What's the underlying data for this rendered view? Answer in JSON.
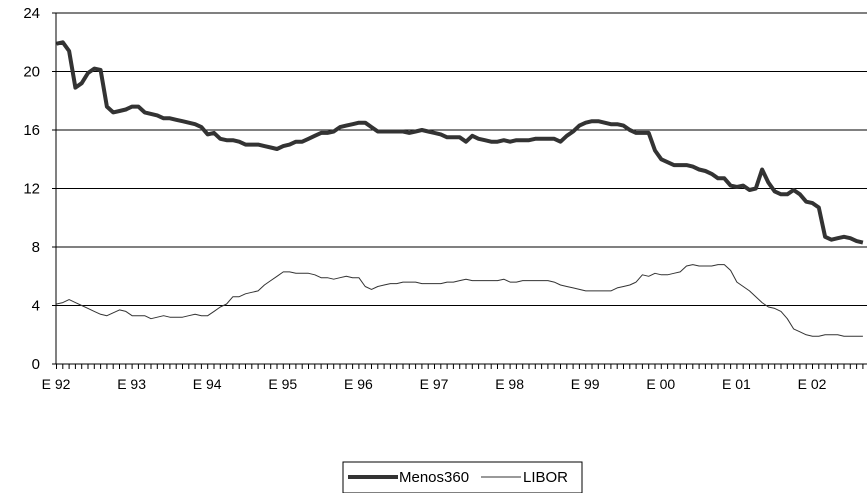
{
  "chart_data": {
    "type": "line",
    "title": "",
    "xlabel": "",
    "ylabel": "",
    "ylim": [
      0,
      24
    ],
    "yticks": [
      0,
      4,
      8,
      12,
      16,
      20,
      24
    ],
    "x_start": "1992-01",
    "x_end": "2002-06",
    "x_tick_labels": [
      "E 92",
      "E 93",
      "E 94",
      "E 95",
      "E 96",
      "E 97",
      "E 98",
      "E 99",
      "E 00",
      "E 01",
      "E 02"
    ],
    "grid": "horizontal",
    "legend_position": "bottom-center",
    "series": [
      {
        "name": "Menos360",
        "color": "#333333",
        "style": "thick",
        "points": [
          [
            "1992-01",
            21.9
          ],
          [
            "1992-02",
            22.0
          ],
          [
            "1992-03",
            21.4
          ],
          [
            "1992-04",
            18.9
          ],
          [
            "1992-05",
            19.2
          ],
          [
            "1992-06",
            19.9
          ],
          [
            "1992-07",
            20.2
          ],
          [
            "1992-08",
            20.1
          ],
          [
            "1992-09",
            17.6
          ],
          [
            "1992-10",
            17.2
          ],
          [
            "1992-11",
            17.3
          ],
          [
            "1992-12",
            17.4
          ],
          [
            "1993-01",
            17.6
          ],
          [
            "1993-02",
            17.6
          ],
          [
            "1993-03",
            17.2
          ],
          [
            "1993-04",
            17.1
          ],
          [
            "1993-05",
            17.0
          ],
          [
            "1993-06",
            16.8
          ],
          [
            "1993-07",
            16.8
          ],
          [
            "1993-08",
            16.7
          ],
          [
            "1993-09",
            16.6
          ],
          [
            "1993-10",
            16.5
          ],
          [
            "1993-11",
            16.4
          ],
          [
            "1993-12",
            16.2
          ],
          [
            "1994-01",
            15.7
          ],
          [
            "1994-02",
            15.8
          ],
          [
            "1994-03",
            15.4
          ],
          [
            "1994-04",
            15.3
          ],
          [
            "1994-05",
            15.3
          ],
          [
            "1994-06",
            15.2
          ],
          [
            "1994-07",
            15.0
          ],
          [
            "1994-08",
            15.0
          ],
          [
            "1994-09",
            15.0
          ],
          [
            "1994-10",
            14.9
          ],
          [
            "1994-11",
            14.8
          ],
          [
            "1994-12",
            14.7
          ],
          [
            "1995-01",
            14.9
          ],
          [
            "1995-02",
            15.0
          ],
          [
            "1995-03",
            15.2
          ],
          [
            "1995-04",
            15.2
          ],
          [
            "1995-05",
            15.4
          ],
          [
            "1995-06",
            15.6
          ],
          [
            "1995-07",
            15.8
          ],
          [
            "1995-08",
            15.8
          ],
          [
            "1995-09",
            15.9
          ],
          [
            "1995-10",
            16.2
          ],
          [
            "1995-11",
            16.3
          ],
          [
            "1995-12",
            16.4
          ],
          [
            "1996-01",
            16.5
          ],
          [
            "1996-02",
            16.5
          ],
          [
            "1996-03",
            16.2
          ],
          [
            "1996-04",
            15.9
          ],
          [
            "1996-05",
            15.9
          ],
          [
            "1996-06",
            15.9
          ],
          [
            "1996-07",
            15.9
          ],
          [
            "1996-08",
            15.9
          ],
          [
            "1996-09",
            15.8
          ],
          [
            "1996-10",
            15.9
          ],
          [
            "1996-11",
            16.0
          ],
          [
            "1996-12",
            15.9
          ],
          [
            "1997-01",
            15.8
          ],
          [
            "1997-02",
            15.7
          ],
          [
            "1997-03",
            15.5
          ],
          [
            "1997-04",
            15.5
          ],
          [
            "1997-05",
            15.5
          ],
          [
            "1997-06",
            15.2
          ],
          [
            "1997-07",
            15.6
          ],
          [
            "1997-08",
            15.4
          ],
          [
            "1997-09",
            15.3
          ],
          [
            "1997-10",
            15.2
          ],
          [
            "1997-11",
            15.2
          ],
          [
            "1997-12",
            15.3
          ],
          [
            "1998-01",
            15.2
          ],
          [
            "1998-02",
            15.3
          ],
          [
            "1998-03",
            15.3
          ],
          [
            "1998-04",
            15.3
          ],
          [
            "1998-05",
            15.4
          ],
          [
            "1998-06",
            15.4
          ],
          [
            "1998-07",
            15.4
          ],
          [
            "1998-08",
            15.4
          ],
          [
            "1998-09",
            15.2
          ],
          [
            "1998-10",
            15.6
          ],
          [
            "1998-11",
            15.9
          ],
          [
            "1998-12",
            16.3
          ],
          [
            "1999-01",
            16.5
          ],
          [
            "1999-02",
            16.6
          ],
          [
            "1999-03",
            16.6
          ],
          [
            "1999-04",
            16.5
          ],
          [
            "1999-05",
            16.4
          ],
          [
            "1999-06",
            16.4
          ],
          [
            "1999-07",
            16.3
          ],
          [
            "1999-08",
            16.0
          ],
          [
            "1999-09",
            15.8
          ],
          [
            "1999-10",
            15.8
          ],
          [
            "1999-11",
            15.8
          ],
          [
            "1999-12",
            14.6
          ],
          [
            "2000-01",
            14.0
          ],
          [
            "2000-02",
            13.8
          ],
          [
            "2000-03",
            13.6
          ],
          [
            "2000-04",
            13.6
          ],
          [
            "2000-05",
            13.6
          ],
          [
            "2000-06",
            13.5
          ],
          [
            "2000-07",
            13.3
          ],
          [
            "2000-08",
            13.2
          ],
          [
            "2000-09",
            13.0
          ],
          [
            "2000-10",
            12.7
          ],
          [
            "2000-11",
            12.7
          ],
          [
            "2000-12",
            12.2
          ],
          [
            "2001-01",
            12.1
          ],
          [
            "2001-02",
            12.2
          ],
          [
            "2001-03",
            11.9
          ],
          [
            "2001-04",
            12.0
          ],
          [
            "2001-05",
            13.3
          ],
          [
            "2001-06",
            12.4
          ],
          [
            "2001-07",
            11.8
          ],
          [
            "2001-08",
            11.6
          ],
          [
            "2001-09",
            11.6
          ],
          [
            "2001-10",
            11.9
          ],
          [
            "2001-11",
            11.6
          ],
          [
            "2001-12",
            11.1
          ],
          [
            "2002-01",
            11.0
          ],
          [
            "2002-02",
            10.7
          ],
          [
            "2002-03",
            8.7
          ],
          [
            "2002-04",
            8.5
          ],
          [
            "2002-05",
            8.6
          ],
          [
            "2002-06",
            8.7
          ],
          [
            "2002-07",
            8.6
          ],
          [
            "2002-08",
            8.4
          ],
          [
            "2002-09",
            8.3
          ]
        ]
      },
      {
        "name": "LIBOR",
        "color": "#333333",
        "style": "thin",
        "points": [
          [
            "1992-01",
            4.1
          ],
          [
            "1992-02",
            4.2
          ],
          [
            "1992-03",
            4.4
          ],
          [
            "1992-04",
            4.2
          ],
          [
            "1992-05",
            4.0
          ],
          [
            "1992-06",
            3.8
          ],
          [
            "1992-07",
            3.6
          ],
          [
            "1992-08",
            3.4
          ],
          [
            "1992-09",
            3.3
          ],
          [
            "1992-10",
            3.5
          ],
          [
            "1992-11",
            3.7
          ],
          [
            "1992-12",
            3.6
          ],
          [
            "1993-01",
            3.3
          ],
          [
            "1993-02",
            3.3
          ],
          [
            "1993-03",
            3.3
          ],
          [
            "1993-04",
            3.1
          ],
          [
            "1993-05",
            3.2
          ],
          [
            "1993-06",
            3.3
          ],
          [
            "1993-07",
            3.2
          ],
          [
            "1993-08",
            3.2
          ],
          [
            "1993-09",
            3.2
          ],
          [
            "1993-10",
            3.3
          ],
          [
            "1993-11",
            3.4
          ],
          [
            "1993-12",
            3.3
          ],
          [
            "1994-01",
            3.3
          ],
          [
            "1994-02",
            3.6
          ],
          [
            "1994-03",
            3.9
          ],
          [
            "1994-04",
            4.1
          ],
          [
            "1994-05",
            4.6
          ],
          [
            "1994-06",
            4.6
          ],
          [
            "1994-07",
            4.8
          ],
          [
            "1994-08",
            4.9
          ],
          [
            "1994-09",
            5.0
          ],
          [
            "1994-10",
            5.4
          ],
          [
            "1994-11",
            5.7
          ],
          [
            "1994-12",
            6.0
          ],
          [
            "1995-01",
            6.3
          ],
          [
            "1995-02",
            6.3
          ],
          [
            "1995-03",
            6.2
          ],
          [
            "1995-04",
            6.2
          ],
          [
            "1995-05",
            6.2
          ],
          [
            "1995-06",
            6.1
          ],
          [
            "1995-07",
            5.9
          ],
          [
            "1995-08",
            5.9
          ],
          [
            "1995-09",
            5.8
          ],
          [
            "1995-10",
            5.9
          ],
          [
            "1995-11",
            6.0
          ],
          [
            "1995-12",
            5.9
          ],
          [
            "1996-01",
            5.9
          ],
          [
            "1996-02",
            5.3
          ],
          [
            "1996-03",
            5.1
          ],
          [
            "1996-04",
            5.3
          ],
          [
            "1996-05",
            5.4
          ],
          [
            "1996-06",
            5.5
          ],
          [
            "1996-07",
            5.5
          ],
          [
            "1996-08",
            5.6
          ],
          [
            "1996-09",
            5.6
          ],
          [
            "1996-10",
            5.6
          ],
          [
            "1996-11",
            5.5
          ],
          [
            "1996-12",
            5.5
          ],
          [
            "1997-01",
            5.5
          ],
          [
            "1997-02",
            5.5
          ],
          [
            "1997-03",
            5.6
          ],
          [
            "1997-04",
            5.6
          ],
          [
            "1997-05",
            5.7
          ],
          [
            "1997-06",
            5.8
          ],
          [
            "1997-07",
            5.7
          ],
          [
            "1997-08",
            5.7
          ],
          [
            "1997-09",
            5.7
          ],
          [
            "1997-10",
            5.7
          ],
          [
            "1997-11",
            5.7
          ],
          [
            "1997-12",
            5.8
          ],
          [
            "1998-01",
            5.6
          ],
          [
            "1998-02",
            5.6
          ],
          [
            "1998-03",
            5.7
          ],
          [
            "1998-04",
            5.7
          ],
          [
            "1998-05",
            5.7
          ],
          [
            "1998-06",
            5.7
          ],
          [
            "1998-07",
            5.7
          ],
          [
            "1998-08",
            5.6
          ],
          [
            "1998-09",
            5.4
          ],
          [
            "1998-10",
            5.3
          ],
          [
            "1998-11",
            5.2
          ],
          [
            "1998-12",
            5.1
          ],
          [
            "1999-01",
            5.0
          ],
          [
            "1999-02",
            5.0
          ],
          [
            "1999-03",
            5.0
          ],
          [
            "1999-04",
            5.0
          ],
          [
            "1999-05",
            5.0
          ],
          [
            "1999-06",
            5.2
          ],
          [
            "1999-07",
            5.3
          ],
          [
            "1999-08",
            5.4
          ],
          [
            "1999-09",
            5.6
          ],
          [
            "1999-10",
            6.1
          ],
          [
            "1999-11",
            6.0
          ],
          [
            "1999-12",
            6.2
          ],
          [
            "2000-01",
            6.1
          ],
          [
            "2000-02",
            6.1
          ],
          [
            "2000-03",
            6.2
          ],
          [
            "2000-04",
            6.3
          ],
          [
            "2000-05",
            6.7
          ],
          [
            "2000-06",
            6.8
          ],
          [
            "2000-07",
            6.7
          ],
          [
            "2000-08",
            6.7
          ],
          [
            "2000-09",
            6.7
          ],
          [
            "2000-10",
            6.8
          ],
          [
            "2000-11",
            6.8
          ],
          [
            "2000-12",
            6.4
          ],
          [
            "2001-01",
            5.6
          ],
          [
            "2001-02",
            5.3
          ],
          [
            "2001-03",
            5.0
          ],
          [
            "2001-04",
            4.6
          ],
          [
            "2001-05",
            4.2
          ],
          [
            "2001-06",
            3.9
          ],
          [
            "2001-07",
            3.8
          ],
          [
            "2001-08",
            3.6
          ],
          [
            "2001-09",
            3.1
          ],
          [
            "2001-10",
            2.4
          ],
          [
            "2001-11",
            2.2
          ],
          [
            "2001-12",
            2.0
          ],
          [
            "2002-01",
            1.9
          ],
          [
            "2002-02",
            1.9
          ],
          [
            "2002-03",
            2.0
          ],
          [
            "2002-04",
            2.0
          ],
          [
            "2002-05",
            2.0
          ],
          [
            "2002-06",
            1.9
          ],
          [
            "2002-07",
            1.9
          ],
          [
            "2002-08",
            1.9
          ],
          [
            "2002-09",
            1.9
          ]
        ]
      }
    ]
  }
}
